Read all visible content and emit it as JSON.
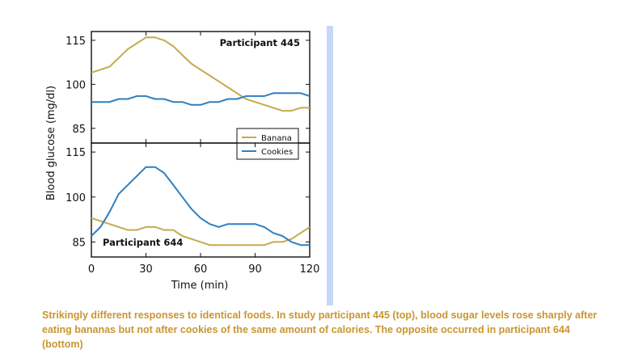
{
  "caption": "Strikingly different responses to identical foods. In study participant 445 (top), blood sugar levels rose sharply after eating bananas but not after cookies of the same amount of calories. The opposite occurred in participant 644 (bottom)",
  "colors": {
    "banana": "#c4aa4e",
    "cookies": "#2e7fc0",
    "sidebar": "#c5d8f6",
    "caption": "#c89632"
  },
  "chart_data": [
    {
      "type": "line",
      "panel": "top",
      "label": "Participant 445",
      "ylabel": "Blood glucose (mg/dl)",
      "xlim": [
        0,
        120
      ],
      "ylim": [
        80,
        118
      ],
      "yticks": [
        "85",
        "100",
        "115"
      ],
      "yticks_values": [
        85,
        100,
        115
      ],
      "legend": {
        "location": "lower-right",
        "entries": [
          "Banana",
          "Cookies"
        ]
      },
      "series": [
        {
          "name": "Banana",
          "x": [
            0,
            5,
            10,
            15,
            20,
            25,
            30,
            35,
            40,
            45,
            50,
            55,
            60,
            65,
            70,
            75,
            80,
            85,
            90,
            95,
            100,
            105,
            110,
            115,
            120
          ],
          "y": [
            104,
            105,
            106,
            109,
            112,
            114,
            116,
            116,
            115,
            113,
            110,
            107,
            105,
            103,
            101,
            99,
            97,
            95,
            94,
            93,
            92,
            91,
            91,
            92,
            92
          ]
        },
        {
          "name": "Cookies",
          "x": [
            0,
            5,
            10,
            15,
            20,
            25,
            30,
            35,
            40,
            45,
            50,
            55,
            60,
            65,
            70,
            75,
            80,
            85,
            90,
            95,
            100,
            105,
            110,
            115,
            120
          ],
          "y": [
            94,
            94,
            94,
            95,
            95,
            96,
            96,
            95,
            95,
            94,
            94,
            93,
            93,
            94,
            94,
            95,
            95,
            96,
            96,
            96,
            97,
            97,
            97,
            97,
            96
          ]
        }
      ]
    },
    {
      "type": "line",
      "panel": "bottom",
      "label": "Participant 644",
      "xlabel": "Time (min)",
      "xlim": [
        0,
        120
      ],
      "ylim": [
        80,
        118
      ],
      "xticks": [
        "0",
        "30",
        "60",
        "90",
        "120"
      ],
      "xticks_values": [
        0,
        30,
        60,
        90,
        120
      ],
      "yticks": [
        "85",
        "100",
        "115"
      ],
      "yticks_values": [
        85,
        100,
        115
      ],
      "series": [
        {
          "name": "Banana",
          "x": [
            0,
            5,
            10,
            15,
            20,
            25,
            30,
            35,
            40,
            45,
            50,
            55,
            60,
            65,
            70,
            75,
            80,
            85,
            90,
            95,
            100,
            105,
            110,
            115,
            120
          ],
          "y": [
            93,
            92,
            91,
            90,
            89,
            89,
            90,
            90,
            89,
            89,
            87,
            86,
            85,
            84,
            84,
            84,
            84,
            84,
            84,
            84,
            85,
            85,
            86,
            88,
            90
          ]
        },
        {
          "name": "Cookies",
          "x": [
            0,
            5,
            10,
            15,
            20,
            25,
            30,
            35,
            40,
            45,
            50,
            55,
            60,
            65,
            70,
            75,
            80,
            85,
            90,
            95,
            100,
            105,
            110,
            115,
            120
          ],
          "y": [
            87,
            90,
            95,
            101,
            104,
            107,
            110,
            110,
            108,
            104,
            100,
            96,
            93,
            91,
            90,
            91,
            91,
            91,
            91,
            90,
            88,
            87,
            85,
            84,
            84
          ]
        }
      ]
    }
  ]
}
